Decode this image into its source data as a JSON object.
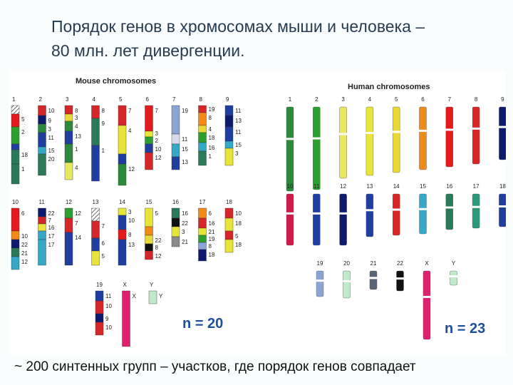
{
  "slide": {
    "title_line1": "Порядок генов в хромосомах мыши и человека –",
    "title_line2": "80 млн. лет дивергенции.",
    "caption": "~ 200 синтенных групп – участков, где порядок генов совпадает"
  },
  "mouse": {
    "title": "Mouse chromosomes",
    "count_label": "n = 20",
    "chromosomes": [
      {
        "name": "1",
        "segments": [
          {
            "c": "#8a8a8a",
            "h": 12,
            "hatch": true
          },
          {
            "c": "#e41a1c",
            "h": 18,
            "l": "5"
          },
          {
            "c": "#2ca02c",
            "h": 24,
            "l": "2"
          },
          {
            "c": "#1f3fa0",
            "h": 8
          },
          {
            "c": "#2a7a5a",
            "h": 20,
            "l": "18"
          },
          {
            "c": "#2a7a5a",
            "h": 28,
            "l": "1"
          }
        ]
      },
      {
        "name": "2",
        "segments": [
          {
            "c": "#d62728",
            "h": 14,
            "l": "10"
          },
          {
            "c": "#0d1b6e",
            "h": 12,
            "l": "9"
          },
          {
            "c": "#2a8a3a",
            "h": 12,
            "l": "3"
          },
          {
            "c": "#1f3fa0",
            "h": 20,
            "l": "11"
          },
          {
            "c": "#35a7c9",
            "h": 10,
            "l": "15"
          },
          {
            "c": "#2a7a5a",
            "h": 30,
            "l": "20"
          }
        ]
      },
      {
        "name": "3",
        "segments": [
          {
            "c": "#d62728",
            "h": 12,
            "l": "8"
          },
          {
            "c": "#e8d83a",
            "h": 10,
            "l": "3"
          },
          {
            "c": "#2a8a3a",
            "h": 14,
            "l": "4"
          },
          {
            "c": "#1f3fa0",
            "h": 18,
            "l": "13"
          },
          {
            "c": "#2a8a3a",
            "h": 26,
            "l": "1"
          },
          {
            "c": "#e8e860",
            "h": 24,
            "l": "4"
          }
        ]
      },
      {
        "name": "4",
        "segments": [
          {
            "c": "#d62728",
            "h": 18,
            "l": "8"
          },
          {
            "c": "#2a7a5a",
            "h": 38,
            "l": "9"
          },
          {
            "c": "#1f3fa0",
            "h": 50,
            "l": "1"
          }
        ]
      },
      {
        "name": "5",
        "segments": [
          {
            "c": "#d62728",
            "h": 28,
            "l": "7"
          },
          {
            "c": "#e8e43a",
            "h": 40,
            "l": "4"
          },
          {
            "c": "#1f3fa0",
            "h": 14
          },
          {
            "c": "#2a8a3a",
            "h": 30,
            "l": "12"
          }
        ]
      },
      {
        "name": "6",
        "segments": [
          {
            "c": "#e41a1c",
            "h": 36,
            "l": "7"
          },
          {
            "c": "#e8e43a",
            "h": 8,
            "l": "3"
          },
          {
            "c": "#2ca02c",
            "h": 10,
            "l": "2"
          },
          {
            "c": "#1f3fa0",
            "h": 12,
            "l": "10"
          },
          {
            "c": "#d62728",
            "h": 24,
            "l": "12"
          }
        ]
      },
      {
        "name": "7",
        "segments": [
          {
            "c": "#8aa4d6",
            "h": 40,
            "l": "19"
          },
          {
            "c": "#d9d9ee",
            "h": 14,
            "l": "11"
          },
          {
            "c": "#35a7c9",
            "h": 18,
            "l": "15"
          },
          {
            "c": "#1f3fa0",
            "h": 18,
            "l": "13"
          }
        ]
      },
      {
        "name": "8",
        "segments": [
          {
            "c": "#d62728",
            "h": 10,
            "l": "19"
          },
          {
            "c": "#f28a1a",
            "h": 18,
            "l": "8"
          },
          {
            "c": "#e8d83a",
            "h": 10,
            "l": "4"
          },
          {
            "c": "#2ca02c",
            "h": 14,
            "l": "18"
          },
          {
            "c": "#35a7c9",
            "h": 12,
            "l": "16"
          },
          {
            "c": "#2a7a5a",
            "h": 20,
            "l": "1"
          }
        ]
      },
      {
        "name": "9",
        "segments": [
          {
            "c": "#1f3fa0",
            "h": 14,
            "l": "11"
          },
          {
            "c": "#0d1b6e",
            "h": 16,
            "l": "13"
          },
          {
            "c": "#1f3fa0",
            "h": 20,
            "l": "11"
          },
          {
            "c": "#35a7c9",
            "h": 10,
            "l": "15"
          },
          {
            "c": "#e8e43a",
            "h": 24,
            "l": "3"
          }
        ]
      },
      {
        "name": "10",
        "segments": [
          {
            "c": "#e41a1c",
            "h": 32,
            "l": "6"
          },
          {
            "c": "#f28a1a",
            "h": 12,
            "l": "10"
          },
          {
            "c": "#0d1b6e",
            "h": 12,
            "l": "22"
          },
          {
            "c": "#2a7a5a",
            "h": 12,
            "l": "21"
          },
          {
            "c": "#35a7c9",
            "h": 18,
            "l": "12"
          }
        ]
      },
      {
        "name": "11",
        "segments": [
          {
            "c": "#0d1b6e",
            "h": 12,
            "l": "22"
          },
          {
            "c": "#d62728",
            "h": 10,
            "l": "7"
          },
          {
            "c": "#e8e43a",
            "h": 10,
            "l": "16"
          },
          {
            "c": "#35a7c9",
            "h": 12,
            "l": "17"
          },
          {
            "c": "#35a7c9",
            "h": 36,
            "l": "17"
          }
        ]
      },
      {
        "name": "12",
        "segments": [
          {
            "c": "#2ca02c",
            "h": 14,
            "l": "12"
          },
          {
            "c": "#d62728",
            "h": 20,
            "l": "7"
          },
          {
            "c": "#1f3fa0",
            "h": 46,
            "l": "14"
          }
        ]
      },
      {
        "name": "13",
        "segments": [
          {
            "c": "#8a8a8a",
            "h": 18,
            "hatch": true
          },
          {
            "c": "#d62728",
            "h": 24,
            "l": "7"
          },
          {
            "c": "#1f3fa0",
            "h": 18,
            "l": "6"
          },
          {
            "c": "#e8e43a",
            "h": 20,
            "l": "5"
          }
        ]
      },
      {
        "name": "14",
        "segments": [
          {
            "c": "#e8e43a",
            "h": 10,
            "l": "3"
          },
          {
            "c": "#1f3fa0",
            "h": 20,
            "l": "10"
          },
          {
            "c": "#e41a1c",
            "h": 14,
            "l": "8"
          },
          {
            "c": "#1f3fa0",
            "h": 36,
            "l": "13"
          }
        ]
      },
      {
        "name": "15",
        "segments": [
          {
            "c": "#e8e43a",
            "h": 26,
            "l": "5"
          },
          {
            "c": "#f28a1a",
            "h": 12
          },
          {
            "c": "#e8d83a",
            "h": 12,
            "l": "22"
          },
          {
            "c": "#111111",
            "h": 10,
            "l": "8"
          },
          {
            "c": "#d62728",
            "h": 12,
            "l": "12"
          }
        ]
      },
      {
        "name": "16",
        "segments": [
          {
            "c": "#2a7a5a",
            "h": 14,
            "l": "16"
          },
          {
            "c": "#111111",
            "h": 12,
            "l": "22"
          },
          {
            "c": "#e8e43a",
            "h": 14,
            "l": "3"
          },
          {
            "c": "#8a8a8a",
            "h": 14,
            "l": "21"
          }
        ]
      },
      {
        "name": "17",
        "segments": [
          {
            "c": "#f28a1a",
            "h": 14,
            "l": "6"
          },
          {
            "c": "#d62728",
            "h": 14,
            "l": "16"
          },
          {
            "c": "#e8e43a",
            "h": 10,
            "l": "21"
          },
          {
            "c": "#2ca02c",
            "h": 10,
            "l": "19"
          },
          {
            "c": "#8aa4d6",
            "h": 10,
            "l": "8"
          },
          {
            "c": "#0d1b6e",
            "h": 16,
            "l": "18"
          }
        ]
      },
      {
        "name": "18",
        "segments": [
          {
            "c": "#d62728",
            "h": 14,
            "l": "10"
          },
          {
            "c": "#e8e43a",
            "h": 18,
            "l": "18"
          },
          {
            "c": "#d62728",
            "h": 12,
            "l": "5"
          },
          {
            "c": "#e8e43a",
            "h": 18,
            "l": "18"
          }
        ]
      },
      {
        "name": "19",
        "segments": [
          {
            "c": "#1f3fa0",
            "h": 14,
            "l": "11"
          },
          {
            "c": "#d62728",
            "h": 18,
            "l": "10"
          },
          {
            "c": "#0d1b6e",
            "h": 12,
            "l": "9"
          },
          {
            "c": "#d62728",
            "h": 18,
            "l": "10"
          }
        ]
      },
      {
        "name": "X",
        "segments": [
          {
            "c": "#e0206e",
            "h": 78,
            "l": "X"
          }
        ]
      },
      {
        "name": "Y",
        "segments": [
          {
            "c": "#bfeac9",
            "h": 18,
            "l": "Y"
          }
        ]
      }
    ]
  },
  "human": {
    "title": "Human chromosomes",
    "count_label": "n = 23",
    "chromosomes": [
      {
        "name": "1",
        "color": "#2a8a3a",
        "h": 118
      },
      {
        "name": "2",
        "color": "#2ca02c",
        "h": 116
      },
      {
        "name": "3",
        "color": "#e8e860",
        "h": 100
      },
      {
        "name": "4",
        "color": "#e8e43a",
        "h": 96
      },
      {
        "name": "5",
        "color": "#e8d83a",
        "h": 92
      },
      {
        "name": "6",
        "color": "#f28a1a",
        "h": 88
      },
      {
        "name": "7",
        "color": "#e41a1c",
        "h": 84
      },
      {
        "name": "8",
        "color": "#d62728",
        "h": 80
      },
      {
        "name": "9",
        "color": "#0d1b6e",
        "h": 74
      },
      {
        "name": "10",
        "color": "#d01a4a",
        "h": 72
      },
      {
        "name": "11",
        "color": "#1f3fa0",
        "h": 72
      },
      {
        "name": "12",
        "color": "#0d1b6e",
        "h": 72
      },
      {
        "name": "13",
        "color": "#1f3fa0",
        "h": 60
      },
      {
        "name": "14",
        "color": "#d62728",
        "h": 58
      },
      {
        "name": "15",
        "color": "#35a7c9",
        "h": 56
      },
      {
        "name": "16",
        "color": "#2a7a5a",
        "h": 50
      },
      {
        "name": "17",
        "color": "#2a9a7a",
        "h": 48
      },
      {
        "name": "18",
        "color": "#1f3fa0",
        "h": 46
      },
      {
        "name": "19",
        "color": "#8aa4d6",
        "h": 36
      },
      {
        "name": "20",
        "color": "#bfeac9",
        "h": 38
      },
      {
        "name": "21",
        "color": "#5a6478",
        "h": 26
      },
      {
        "name": "22",
        "color": "#111111",
        "h": 28
      },
      {
        "name": "X",
        "color": "#e0206e",
        "h": 96
      },
      {
        "name": "Y",
        "color": "#bfeac9",
        "h": 20
      }
    ]
  }
}
